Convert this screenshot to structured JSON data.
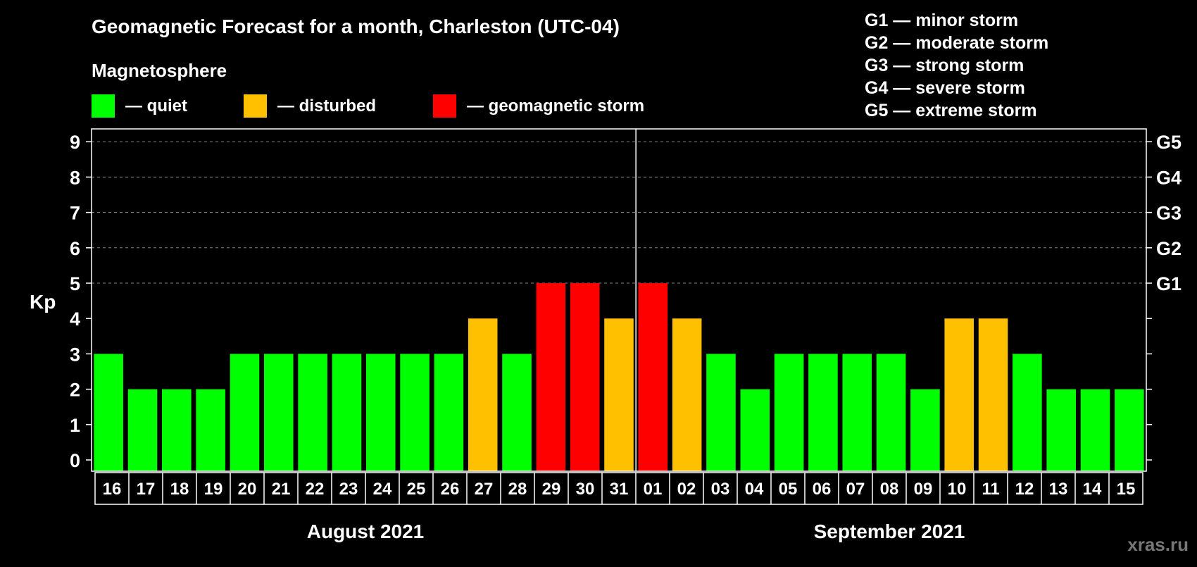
{
  "chart_data": {
    "type": "bar",
    "title": "Geomagnetic Forecast for a month, Charleston (UTC-04)",
    "ylabel": "Kp",
    "ylim": [
      0,
      9
    ],
    "yticks": [
      "0",
      "1",
      "2",
      "3",
      "4",
      "5",
      "6",
      "7",
      "8",
      "9"
    ],
    "gticks": [
      {
        "level": 5,
        "label": "G1"
      },
      {
        "level": 6,
        "label": "G2"
      },
      {
        "level": 7,
        "label": "G3"
      },
      {
        "level": 8,
        "label": "G4"
      },
      {
        "level": 9,
        "label": "G5"
      }
    ],
    "categories": [
      "16",
      "17",
      "18",
      "19",
      "20",
      "21",
      "22",
      "23",
      "24",
      "25",
      "26",
      "27",
      "28",
      "29",
      "30",
      "31",
      "01",
      "02",
      "03",
      "04",
      "05",
      "06",
      "07",
      "08",
      "09",
      "10",
      "11",
      "12",
      "13",
      "14",
      "15"
    ],
    "values": [
      3,
      2,
      2,
      2,
      3,
      3,
      3,
      3,
      3,
      3,
      3,
      4,
      3,
      5,
      5,
      4,
      5,
      4,
      3,
      2,
      3,
      3,
      3,
      3,
      2,
      4,
      4,
      3,
      2,
      2,
      2
    ],
    "months": [
      {
        "label": "August 2021",
        "start_index": 0,
        "end_index": 15
      },
      {
        "label": "September 2021",
        "start_index": 16,
        "end_index": 30
      }
    ],
    "legend_title": "Magnetosphere",
    "legend": [
      {
        "label": "— quiet",
        "color": "#00ff00"
      },
      {
        "label": "— disturbed",
        "color": "#ffc000"
      },
      {
        "label": "— geomagnetic storm",
        "color": "#ff0000"
      }
    ],
    "storm_scale": [
      "G1 — minor storm",
      "G2 — moderate storm",
      "G3 — strong storm",
      "G4 — severe storm",
      "G5 — extreme storm"
    ],
    "grid": true
  },
  "colors": {
    "quiet": "#00ff00",
    "disturbed": "#ffc000",
    "storm": "#ff0000"
  },
  "watermark": "xras.ru"
}
